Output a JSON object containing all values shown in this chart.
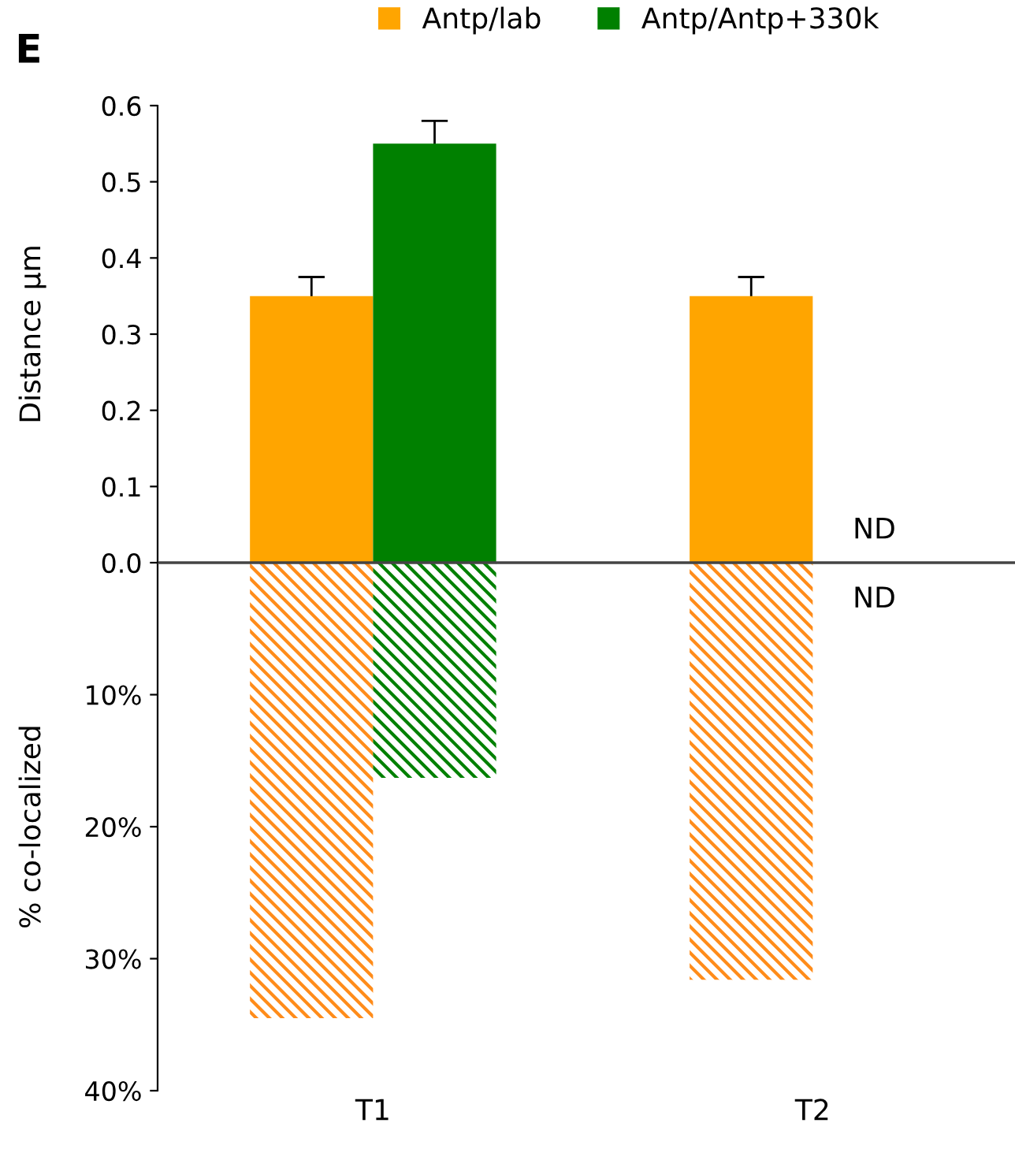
{
  "chart_data": [
    {
      "type": "bar",
      "ylabel": "Distance µm",
      "ylim": [
        0,
        0.6
      ],
      "yticks": [
        {
          "value": 0,
          "label": "0.0"
        },
        0.1,
        0.2,
        0.3,
        0.4,
        0.5,
        0.6
      ],
      "tick_labels": "y",
      "legend": "top",
      "grid": false,
      "annotations": [
        "E"
      ],
      "series": [
        {
          "name": "Antp/lab",
          "color": "#ffa500",
          "values": [
            0.35,
            0.35
          ],
          "errors": [
            0.025,
            0.025
          ]
        },
        {
          "name": "Antp/Antp+330k",
          "color": "#008000",
          "values": [
            0.55,
            null
          ],
          "errors": [
            0.03,
            null
          ],
          "value_labels": [
            null,
            "ND"
          ]
        }
      ]
    },
    {
      "type": "bar",
      "categories": [
        "T1",
        "T2"
      ],
      "ylabel": "% co-localized",
      "ylim": [
        40,
        0
      ],
      "yticks": [
        {
          "value": 10,
          "label": "10%"
        },
        {
          "value": 20,
          "label": "20%"
        },
        {
          "value": 30,
          "label": "30%"
        },
        {
          "value": 40,
          "label": "40%"
        }
      ],
      "grid": false,
      "series": [
        {
          "color": "#ff8c1a",
          "values": [
            34.5,
            31.6
          ]
        },
        {
          "color": "#008000",
          "values": [
            16.3,
            null
          ],
          "value_labels": [
            null,
            "ND"
          ]
        }
      ]
    }
  ]
}
